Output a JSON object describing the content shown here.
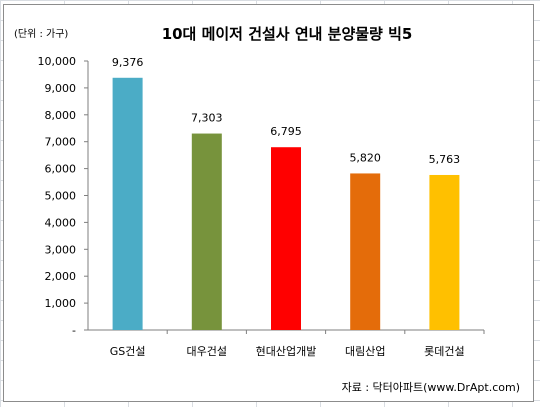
{
  "chart_data": {
    "type": "bar",
    "title": "10대 메이저 건설사 연내 분양물량 빅5",
    "unit_label": "(단위 : 가구)",
    "source": "자료 : 닥터아파트(www.DrApt.com)",
    "categories": [
      "GS건설",
      "대우건설",
      "현대산업개발",
      "대림산업",
      "롯데건설"
    ],
    "values": [
      9376,
      7303,
      6795,
      5820,
      5763
    ],
    "value_labels": [
      "9,376",
      "7,303",
      "6,795",
      "5,820",
      "5,763"
    ],
    "colors": [
      "#4bacc6",
      "#77933c",
      "#ff0000",
      "#e46c0a",
      "#ffc000"
    ],
    "ylim": [
      0,
      10000
    ],
    "yticks": [
      0,
      1000,
      2000,
      3000,
      4000,
      5000,
      6000,
      7000,
      8000,
      9000,
      10000
    ],
    "ytick_labels": [
      "-",
      "1,000",
      "2,000",
      "3,000",
      "4,000",
      "5,000",
      "6,000",
      "7,000",
      "8,000",
      "9,000",
      "10,000"
    ],
    "grid": false,
    "legend": false
  }
}
